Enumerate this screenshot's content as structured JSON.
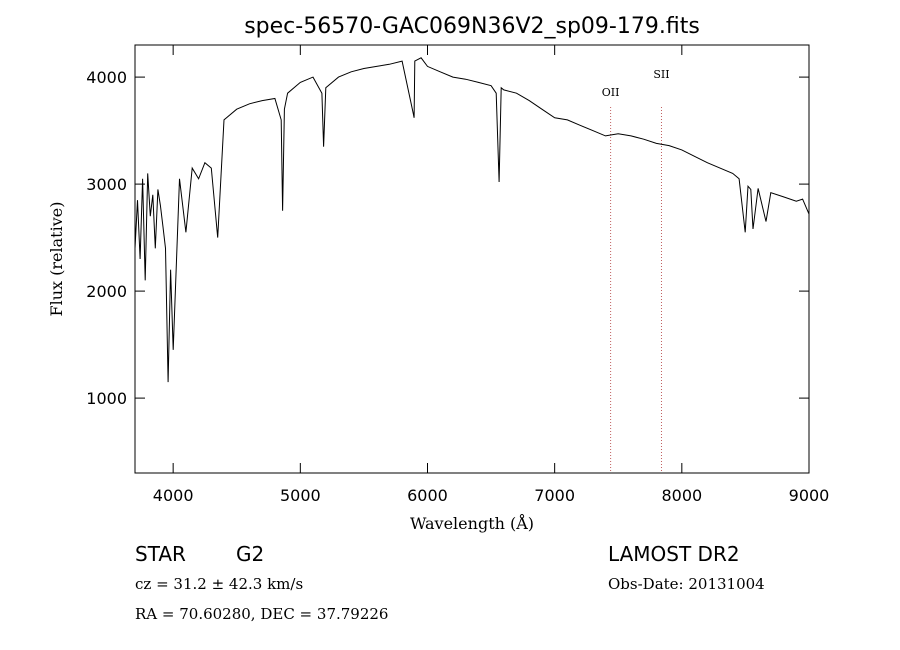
{
  "chart_data": {
    "type": "line",
    "title": "spec-56570-GAC069N36V2_sp09-179.fits",
    "xlabel": "Wavelength (Å)",
    "ylabel": "Flux (relative)",
    "xlim": [
      3700,
      9000
    ],
    "ylim": [
      300,
      4300
    ],
    "xticks": [
      4000,
      5000,
      6000,
      7000,
      8000,
      9000
    ],
    "yticks": [
      1000,
      2000,
      3000,
      4000
    ],
    "grid": false,
    "series": [
      {
        "x": [
          3700,
          3720,
          3740,
          3760,
          3780,
          3800,
          3820,
          3840,
          3860,
          3880,
          3900,
          3920,
          3940,
          3960,
          3980,
          4000,
          4050,
          4100,
          4150,
          4200,
          4250,
          4300,
          4350,
          4400,
          4500,
          4600,
          4700,
          4800,
          4850,
          4861,
          4875,
          4900,
          5000,
          5100,
          5170,
          5183,
          5200,
          5300,
          5400,
          5500,
          5600,
          5700,
          5800,
          5890,
          5895,
          5900,
          5950,
          6000,
          6100,
          6200,
          6300,
          6400,
          6500,
          6540,
          6563,
          6580,
          6600,
          6700,
          6800,
          6900,
          7000,
          7100,
          7200,
          7300,
          7400,
          7500,
          7600,
          7700,
          7800,
          7900,
          8000,
          8100,
          8200,
          8300,
          8400,
          8450,
          8498,
          8520,
          8542,
          8560,
          8600,
          8662,
          8700,
          8800,
          8900,
          8950,
          9000
        ],
        "y": [
          2400,
          2850,
          2300,
          3050,
          2100,
          3100,
          2700,
          2900,
          2400,
          2950,
          2800,
          2600,
          2400,
          1150,
          2200,
          1450,
          3050,
          2550,
          3150,
          3050,
          3200,
          3150,
          2500,
          3600,
          3700,
          3750,
          3780,
          3800,
          3600,
          2750,
          3700,
          3850,
          3950,
          4000,
          3850,
          3350,
          3900,
          4000,
          4050,
          4080,
          4100,
          4120,
          4150,
          3650,
          3620,
          4150,
          4180,
          4100,
          4050,
          4000,
          3980,
          3950,
          3920,
          3850,
          3020,
          3900,
          3880,
          3850,
          3780,
          3700,
          3620,
          3600,
          3550,
          3500,
          3450,
          3470,
          3450,
          3420,
          3380,
          3360,
          3320,
          3260,
          3200,
          3150,
          3100,
          3050,
          2550,
          2980,
          2950,
          2580,
          2960,
          2650,
          2920,
          2880,
          2840,
          2860,
          2720
        ]
      }
    ],
    "lines": [
      {
        "label": "OII",
        "x": 7440
      },
      {
        "label": "SII",
        "x": 7840
      }
    ]
  },
  "info": {
    "object_class": "STAR",
    "subclass": "G2",
    "survey": "LAMOST DR2",
    "cz": "cz = 31.2 ± 42.3 km/s",
    "obs_date": "Obs-Date: 20131004",
    "coords": "RA =  70.60280, DEC =  37.79226"
  },
  "colors": {
    "line": "#000000",
    "marker_line": "#c06060"
  }
}
